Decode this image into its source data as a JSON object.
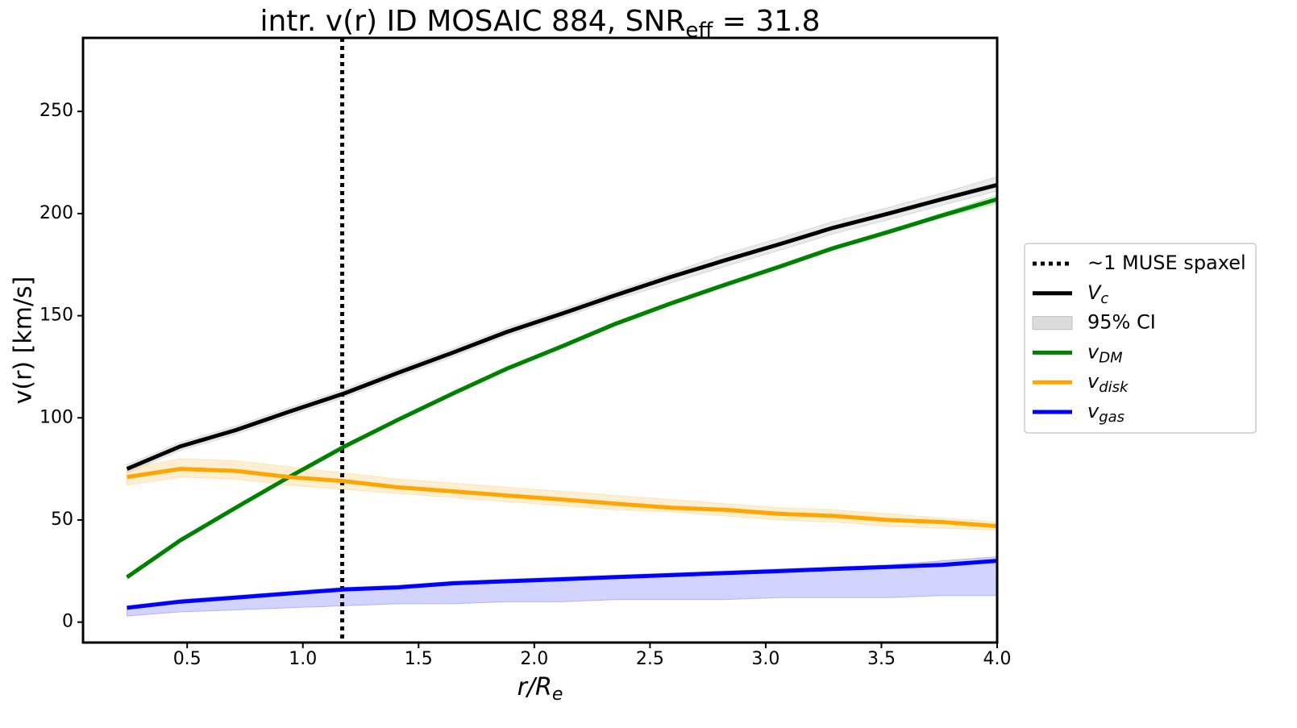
{
  "chart_data": {
    "type": "line",
    "title": [
      "intr. v(r) ID MOSAIC 884, SNR",
      "eff",
      " = 31.8"
    ],
    "xlabel": [
      "r/R",
      "e"
    ],
    "ylabel": "v(r) [km/s]",
    "xlim": [
      0.05,
      4.0
    ],
    "ylim": [
      -10,
      286
    ],
    "xticks": [
      0.5,
      {
        "value": 1,
        "label": "1.0"
      },
      1.5,
      {
        "value": 2,
        "label": "2.0"
      },
      2.5,
      {
        "value": 3,
        "label": "3.0"
      },
      3.5,
      {
        "value": 4,
        "label": "4.0"
      }
    ],
    "yticks": [
      0,
      50,
      100,
      150,
      200,
      250
    ],
    "x": [
      0.24,
      0.47,
      0.71,
      0.94,
      1.18,
      1.41,
      1.65,
      1.88,
      2.12,
      2.35,
      2.59,
      2.82,
      3.06,
      3.29,
      3.53,
      3.76,
      4.0
    ],
    "vline": {
      "x": 1.17,
      "label": "~1 MUSE spaxel",
      "color": "#000000"
    },
    "ci_label": "95% CI",
    "series": [
      {
        "name": "V",
        "subscript": "c",
        "color": "#000000",
        "band_color": "#bfbfbf",
        "values": [
          75,
          86,
          94,
          103,
          112,
          122,
          132,
          142,
          151,
          160,
          169,
          177,
          185,
          193,
          200,
          207,
          214
        ],
        "lower": [
          73,
          84,
          92,
          101,
          110,
          120,
          130,
          140,
          149,
          158,
          166,
          174,
          182,
          190,
          197,
          204,
          211
        ],
        "upper": [
          77,
          88,
          96,
          105,
          114,
          124,
          134,
          144,
          153,
          162,
          171,
          180,
          188,
          196,
          203,
          210,
          218
        ]
      },
      {
        "name": "v",
        "subscript": "DM",
        "color": "#008000",
        "band_color": "#7fd67f",
        "values": [
          22,
          40,
          56,
          71,
          86,
          99,
          112,
          124,
          135,
          146,
          156,
          165,
          174,
          183,
          191,
          199,
          207
        ],
        "lower": [
          21,
          39,
          55,
          70,
          85,
          98,
          111,
          123,
          134,
          145,
          155,
          164,
          173,
          182,
          190,
          198,
          205
        ],
        "upper": [
          23,
          41,
          57,
          72,
          87,
          100,
          113,
          125,
          136,
          147,
          157,
          166,
          175,
          184,
          192,
          200,
          209
        ]
      },
      {
        "name": "v",
        "subscript": "disk",
        "color": "#ffa500",
        "band_color": "#ffd27f",
        "values": [
          71,
          75,
          74,
          71,
          69,
          66,
          64,
          62,
          60,
          58,
          56,
          55,
          53,
          52,
          50,
          49,
          47
        ],
        "lower": [
          67,
          71,
          70,
          67,
          65,
          63,
          61,
          59,
          57,
          55,
          54,
          52,
          50,
          49,
          47,
          46,
          45
        ],
        "upper": [
          75,
          80,
          79,
          76,
          73,
          70,
          68,
          66,
          64,
          62,
          60,
          58,
          56,
          55,
          53,
          51,
          49
        ]
      },
      {
        "name": "v",
        "subscript": "gas",
        "color": "#0000ff",
        "band_color": "#8080ff",
        "values": [
          7,
          10,
          12,
          14,
          16,
          17,
          19,
          20,
          21,
          22,
          23,
          24,
          25,
          26,
          27,
          28,
          30
        ],
        "lower": [
          3,
          5,
          6,
          7,
          8,
          9,
          9,
          10,
          10,
          11,
          11,
          11,
          12,
          12,
          12,
          13,
          13
        ],
        "upper": [
          8,
          11,
          13,
          15,
          17,
          18,
          20,
          21,
          22,
          23,
          24,
          25,
          26,
          27,
          28,
          30,
          32
        ]
      }
    ]
  }
}
